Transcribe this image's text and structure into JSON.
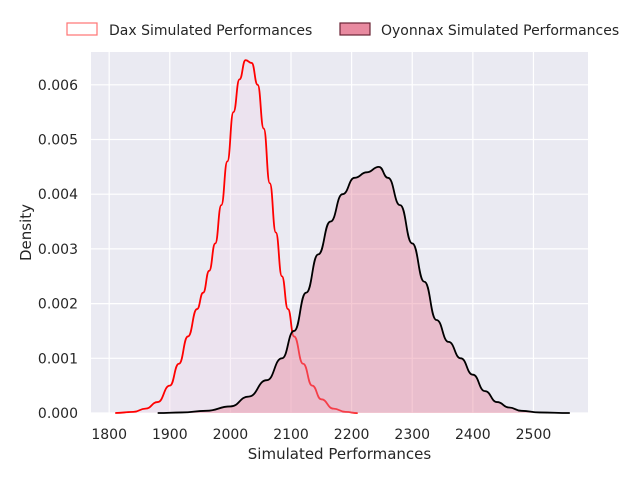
{
  "chart_data": {
    "type": "area",
    "xlabel": "Simulated Performances",
    "ylabel": "Density",
    "xlim": [
      1770,
      2590
    ],
    "ylim": [
      0,
      0.0066
    ],
    "x_ticks": [
      1800,
      1900,
      2000,
      2100,
      2200,
      2300,
      2400,
      2500
    ],
    "x_tick_labels": [
      "1800",
      "1900",
      "2000",
      "2100",
      "2200",
      "2300",
      "2400",
      "2500"
    ],
    "y_ticks": [
      0,
      0.001,
      0.002,
      0.003,
      0.004,
      0.005,
      0.006
    ],
    "y_tick_labels": [
      "0.000",
      "0.001",
      "0.002",
      "0.003",
      "0.004",
      "0.005",
      "0.006"
    ],
    "grid": true,
    "legend_position": "top",
    "series": [
      {
        "name": "Dax Simulated Performances",
        "line_color": "#ff0000",
        "fill_color": "#f0d8ea",
        "fill_opacity": 0.35,
        "points": [
          [
            1810,
            0.0
          ],
          [
            1840,
            2e-05
          ],
          [
            1860,
            8e-05
          ],
          [
            1880,
            0.0002
          ],
          [
            1900,
            0.0005
          ],
          [
            1915,
            0.0009
          ],
          [
            1930,
            0.0014
          ],
          [
            1945,
            0.0019
          ],
          [
            1955,
            0.0022
          ],
          [
            1965,
            0.0026
          ],
          [
            1975,
            0.0031
          ],
          [
            1985,
            0.0038
          ],
          [
            1995,
            0.0046
          ],
          [
            2005,
            0.0055
          ],
          [
            2015,
            0.0061
          ],
          [
            2025,
            0.00645
          ],
          [
            2035,
            0.0064
          ],
          [
            2045,
            0.006
          ],
          [
            2055,
            0.0052
          ],
          [
            2065,
            0.0042
          ],
          [
            2075,
            0.0033
          ],
          [
            2085,
            0.0025
          ],
          [
            2095,
            0.0019
          ],
          [
            2105,
            0.0014
          ],
          [
            2120,
            0.0009
          ],
          [
            2135,
            0.0005
          ],
          [
            2150,
            0.00025
          ],
          [
            2170,
            8e-05
          ],
          [
            2190,
            2e-05
          ],
          [
            2210,
            0.0
          ]
        ]
      },
      {
        "name": "Oyonnax Simulated Performances",
        "line_color": "#000000",
        "fill_color": "#e88aa0",
        "fill_opacity": 0.45,
        "points": [
          [
            1880,
            0.0
          ],
          [
            1920,
            1e-05
          ],
          [
            1960,
            4e-05
          ],
          [
            2000,
            0.00012
          ],
          [
            2030,
            0.0003
          ],
          [
            2060,
            0.0006
          ],
          [
            2085,
            0.001
          ],
          [
            2105,
            0.0015
          ],
          [
            2125,
            0.0022
          ],
          [
            2145,
            0.0029
          ],
          [
            2165,
            0.0035
          ],
          [
            2185,
            0.004
          ],
          [
            2205,
            0.0043
          ],
          [
            2225,
            0.0044
          ],
          [
            2245,
            0.0045
          ],
          [
            2260,
            0.0043
          ],
          [
            2280,
            0.0038
          ],
          [
            2300,
            0.0031
          ],
          [
            2320,
            0.0024
          ],
          [
            2340,
            0.0017
          ],
          [
            2360,
            0.0013
          ],
          [
            2380,
            0.001
          ],
          [
            2400,
            0.0007
          ],
          [
            2420,
            0.0004
          ],
          [
            2440,
            0.0002
          ],
          [
            2460,
            0.0001
          ],
          [
            2480,
            4e-05
          ],
          [
            2510,
            1e-05
          ],
          [
            2560,
            0.0
          ]
        ]
      }
    ]
  }
}
